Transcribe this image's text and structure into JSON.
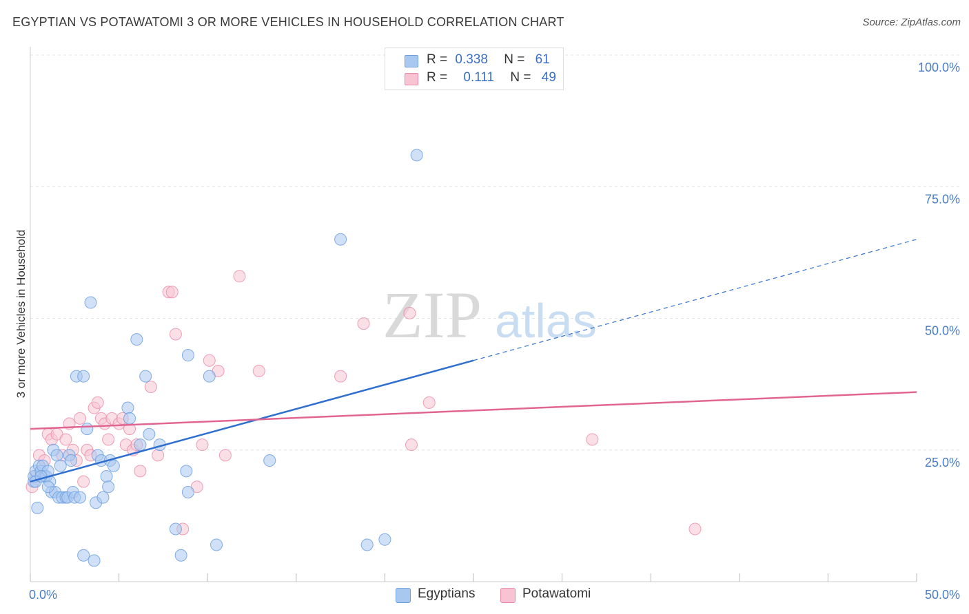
{
  "title": "EGYPTIAN VS POTAWATOMI 3 OR MORE VEHICLES IN HOUSEHOLD CORRELATION CHART",
  "source": "Source: ZipAtlas.com",
  "watermark": {
    "zip": "ZIP",
    "atlas": "atlas"
  },
  "legend": {
    "r_label": "R =",
    "n_label": "N =",
    "rows": [
      {
        "r": "0.338",
        "n": "61",
        "color": "#a9c8f0",
        "border": "#6d9fdf"
      },
      {
        "r": "0.111",
        "n": "49",
        "color": "#f8c4d4",
        "border": "#e98aa8"
      }
    ]
  },
  "bottom_legend": [
    "Egyptians",
    "Potawatomi"
  ],
  "chart_data": {
    "type": "scatter",
    "title": "EGYPTIAN VS POTAWATOMI 3 OR MORE VEHICLES IN HOUSEHOLD CORRELATION CHART",
    "xlabel": "",
    "ylabel": "3 or more Vehicles in Household",
    "xlim": [
      0,
      50
    ],
    "ylim": [
      0,
      100
    ],
    "x_tick_labels": [
      "0.0%",
      "50.0%"
    ],
    "y_tick_labels": [
      "25.0%",
      "50.0%",
      "75.0%",
      "100.0%"
    ],
    "y_ticks": [
      25,
      50,
      75,
      100
    ],
    "grid": true,
    "colors": {
      "egyptians": "#6d9fdf",
      "egyptians_fill": "#a9c8f0",
      "potawatomi": "#e98aa8",
      "potawatomi_fill": "#f8c4d4",
      "egyptians_line": "#2f6fd0",
      "potawatomi_line": "#e06590",
      "axis_text": "#4a7cc4"
    },
    "series": [
      {
        "name": "Egyptians",
        "r": 0.338,
        "n": 61,
        "trend": {
          "x0": 0,
          "y0": 19,
          "x1": 25,
          "y1": 42,
          "dash_to_x": 50,
          "dash_to_y": 65
        },
        "points": [
          [
            0.2,
            19
          ],
          [
            0.2,
            20
          ],
          [
            0.3,
            21
          ],
          [
            0.4,
            14
          ],
          [
            0.5,
            22
          ],
          [
            0.6,
            21
          ],
          [
            0.7,
            22
          ],
          [
            0.8,
            20
          ],
          [
            0.9,
            20
          ],
          [
            1.0,
            21
          ],
          [
            1.1,
            19
          ],
          [
            1.2,
            17
          ],
          [
            1.3,
            25
          ],
          [
            1.4,
            17
          ],
          [
            1.5,
            24
          ],
          [
            1.6,
            16
          ],
          [
            1.7,
            22
          ],
          [
            1.8,
            16
          ],
          [
            2.0,
            16
          ],
          [
            2.1,
            16
          ],
          [
            2.2,
            24
          ],
          [
            2.4,
            17
          ],
          [
            2.5,
            16
          ],
          [
            2.6,
            39
          ],
          [
            2.8,
            16
          ],
          [
            3.0,
            39
          ],
          [
            3.0,
            5
          ],
          [
            3.2,
            29
          ],
          [
            3.4,
            53
          ],
          [
            3.6,
            4
          ],
          [
            3.7,
            15
          ],
          [
            3.8,
            24
          ],
          [
            4.0,
            23
          ],
          [
            4.1,
            16
          ],
          [
            4.3,
            20
          ],
          [
            4.5,
            23
          ],
          [
            4.7,
            22
          ],
          [
            5.5,
            33
          ],
          [
            5.6,
            31
          ],
          [
            6.0,
            46
          ],
          [
            6.2,
            26
          ],
          [
            6.5,
            39
          ],
          [
            6.7,
            28
          ],
          [
            7.3,
            26
          ],
          [
            8.2,
            10
          ],
          [
            8.5,
            5
          ],
          [
            8.8,
            21
          ],
          [
            8.9,
            43
          ],
          [
            8.9,
            17
          ],
          [
            10.1,
            39
          ],
          [
            10.5,
            7
          ],
          [
            13.5,
            23
          ],
          [
            17.5,
            65
          ],
          [
            19.0,
            7
          ],
          [
            20.0,
            8
          ],
          [
            21.8,
            81
          ],
          [
            0.3,
            19
          ],
          [
            0.6,
            20
          ],
          [
            1.0,
            18
          ],
          [
            2.3,
            23
          ],
          [
            4.4,
            18
          ]
        ]
      },
      {
        "name": "Potawatomi",
        "r": 0.111,
        "n": 49,
        "trend": {
          "x0": 0,
          "y0": 29,
          "x1": 50,
          "y1": 36
        },
        "points": [
          [
            0.1,
            18
          ],
          [
            0.3,
            20
          ],
          [
            0.5,
            24
          ],
          [
            0.8,
            23
          ],
          [
            1.0,
            28
          ],
          [
            1.2,
            27
          ],
          [
            1.5,
            28
          ],
          [
            1.8,
            24
          ],
          [
            2.0,
            27
          ],
          [
            2.2,
            30
          ],
          [
            2.4,
            25
          ],
          [
            2.6,
            23
          ],
          [
            2.8,
            31
          ],
          [
            3.0,
            19
          ],
          [
            3.2,
            25
          ],
          [
            3.4,
            24
          ],
          [
            3.6,
            33
          ],
          [
            3.8,
            34
          ],
          [
            4.0,
            31
          ],
          [
            4.2,
            30
          ],
          [
            4.4,
            27
          ],
          [
            4.6,
            31
          ],
          [
            5.0,
            30
          ],
          [
            5.2,
            31
          ],
          [
            5.4,
            26
          ],
          [
            5.6,
            29
          ],
          [
            5.8,
            25
          ],
          [
            6.0,
            26
          ],
          [
            6.2,
            21
          ],
          [
            6.8,
            37
          ],
          [
            7.2,
            24
          ],
          [
            7.8,
            55
          ],
          [
            8.0,
            55
          ],
          [
            8.2,
            47
          ],
          [
            8.6,
            10
          ],
          [
            9.4,
            18
          ],
          [
            9.7,
            26
          ],
          [
            10.1,
            42
          ],
          [
            10.6,
            40
          ],
          [
            11.0,
            24
          ],
          [
            11.8,
            58
          ],
          [
            12.9,
            40
          ],
          [
            17.5,
            39
          ],
          [
            18.8,
            49
          ],
          [
            21.4,
            51
          ],
          [
            21.5,
            26
          ],
          [
            22.5,
            34
          ],
          [
            31.7,
            27
          ],
          [
            37.5,
            10
          ]
        ]
      }
    ]
  }
}
